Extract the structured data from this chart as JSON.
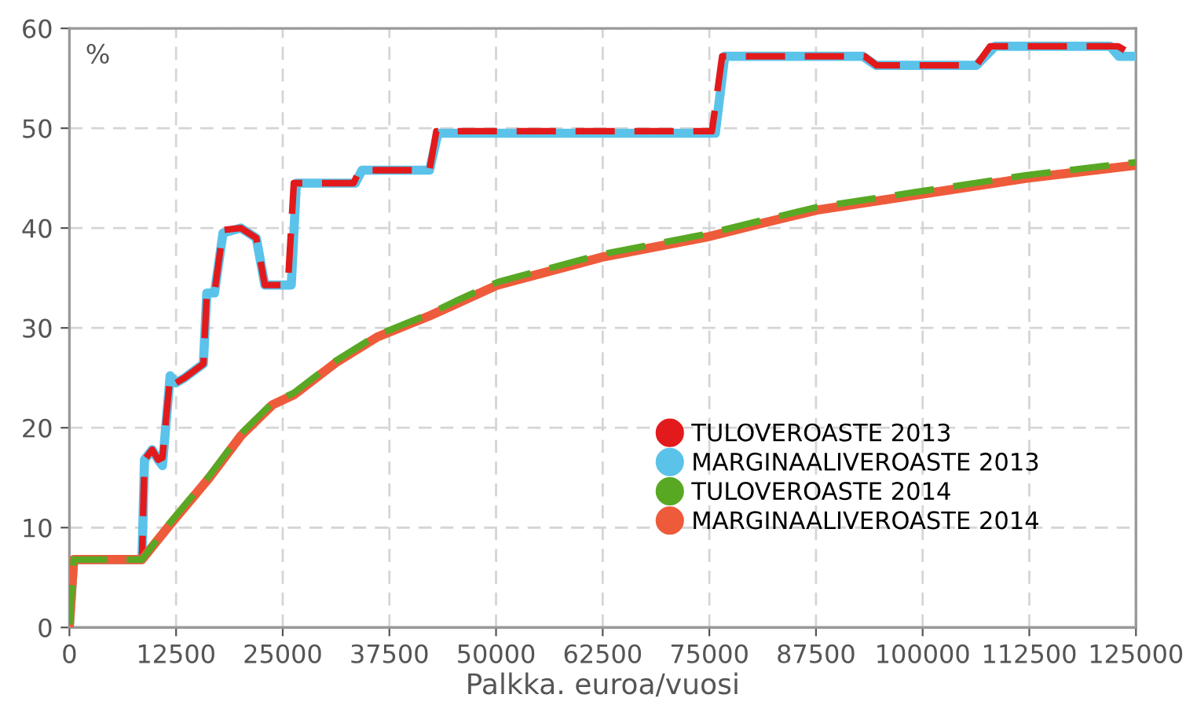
{
  "chart_data": {
    "type": "line",
    "xlabel": "Palkka. euroa/vuosi",
    "annotations": [
      "%"
    ],
    "xlim": [
      0,
      125000
    ],
    "ylim": [
      0,
      60
    ],
    "xticks": [
      0,
      12500,
      25000,
      37500,
      50000,
      62500,
      75000,
      87500,
      100000,
      112500,
      125000
    ],
    "yticks": [
      0,
      10,
      20,
      30,
      40,
      50,
      60
    ],
    "grid": true,
    "legend": "bottom right",
    "series": [
      {
        "name": "MARGINAALIVEROASTE 2013",
        "color": "#5bc3ea",
        "line_style": "solid",
        "x": [
          0,
          500,
          8500,
          8800,
          9700,
          10400,
          10900,
          11800,
          12500,
          13500,
          15700,
          16100,
          17000,
          18000,
          20100,
          21900,
          22900,
          26000,
          26600,
          33500,
          34300,
          42200,
          43200,
          75700,
          76800,
          93000,
          94500,
          106300,
          108500,
          122000,
          123000,
          125000
        ],
        "values": [
          0.3,
          6.8,
          6.8,
          16.8,
          17.8,
          16.8,
          16.2,
          25.2,
          24.5,
          25.0,
          26.4,
          33.5,
          33.5,
          39.5,
          40.0,
          39.0,
          34.3,
          34.3,
          44.5,
          44.5,
          45.8,
          45.8,
          49.5,
          49.5,
          57.2,
          57.2,
          56.3,
          56.3,
          58.2,
          58.2,
          57.2,
          57.2
        ]
      },
      {
        "name": "TULOVEROASTE 2013",
        "color": "#e31a1c",
        "line_style": "dashed",
        "x": [
          0,
          500,
          8500,
          8800,
          9700,
          10400,
          10900,
          11800,
          12500,
          13500,
          15700,
          16100,
          17000,
          18000,
          20100,
          21900,
          22900,
          25600,
          26300,
          33300,
          34000,
          42200,
          43000,
          75300,
          76500,
          93200,
          94600,
          106300,
          107900,
          122900,
          125000
        ],
        "values": [
          0.3,
          6.8,
          6.8,
          16.8,
          17.8,
          16.8,
          17.0,
          25.2,
          24.5,
          25.0,
          26.4,
          33.5,
          33.5,
          39.8,
          40.0,
          39.0,
          34.3,
          34.3,
          44.5,
          44.5,
          45.8,
          45.8,
          49.7,
          49.7,
          57.2,
          57.2,
          56.3,
          56.3,
          58.2,
          58.2,
          57.2
        ]
      },
      {
        "name": "MARGINAALIVEROASTE 2014",
        "color": "#ee5b3b",
        "line_style": "solid",
        "x": [
          0,
          500,
          8500,
          11800,
          16400,
          20100,
          23800,
          26300,
          31200,
          36100,
          42200,
          45300,
          50200,
          62500,
          74700,
          80300,
          87600,
          99900,
          112200,
          125000
        ],
        "values": [
          0.3,
          6.8,
          6.8,
          10.3,
          15.0,
          19.2,
          22.3,
          23.3,
          26.5,
          29.1,
          31.2,
          32.4,
          34.3,
          37.1,
          39.1,
          40.3,
          41.8,
          43.4,
          45.0,
          46.3
        ]
      },
      {
        "name": "TULOVEROASTE 2014",
        "color": "#58a824",
        "line_style": "dashed",
        "x": [
          0,
          500,
          8500,
          11800,
          16400,
          20100,
          23800,
          26300,
          31200,
          36100,
          42200,
          45300,
          50200,
          62500,
          74700,
          80300,
          87600,
          99900,
          112200,
          125000
        ],
        "values": [
          0.3,
          6.8,
          6.8,
          10.5,
          15.2,
          19.4,
          22.5,
          23.5,
          26.7,
          29.3,
          31.4,
          32.7,
          34.6,
          37.4,
          39.4,
          40.6,
          42.1,
          43.7,
          45.3,
          46.6
        ]
      }
    ]
  }
}
